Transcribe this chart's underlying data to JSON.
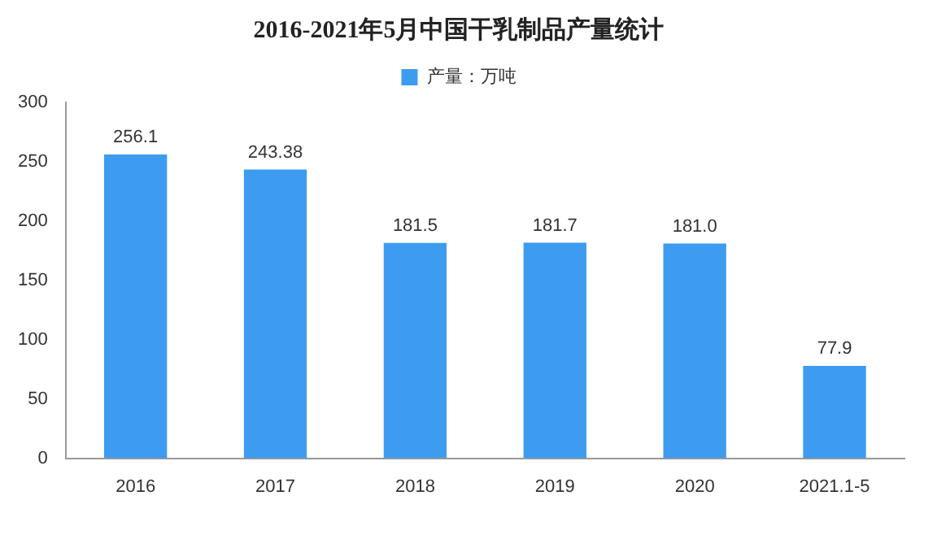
{
  "chart_data": {
    "type": "bar",
    "title": "2016-2021年5月中国干乳制品产量统计",
    "categories": [
      "2016",
      "2017",
      "2018",
      "2019",
      "2020",
      "2021.1-5"
    ],
    "series": [
      {
        "name": "产量：万吨",
        "color": "#3d9cf0",
        "values": [
          256.1,
          243.38,
          181.5,
          181.7,
          181.0,
          77.9
        ],
        "value_labels": [
          "256.1",
          "243.38",
          "181.5",
          "181.7",
          "181.0",
          "77.9"
        ]
      }
    ],
    "ylim": [
      0,
      300
    ],
    "yticks": [
      0,
      50,
      100,
      150,
      200,
      250,
      300
    ],
    "grid": false,
    "legend": "top"
  }
}
